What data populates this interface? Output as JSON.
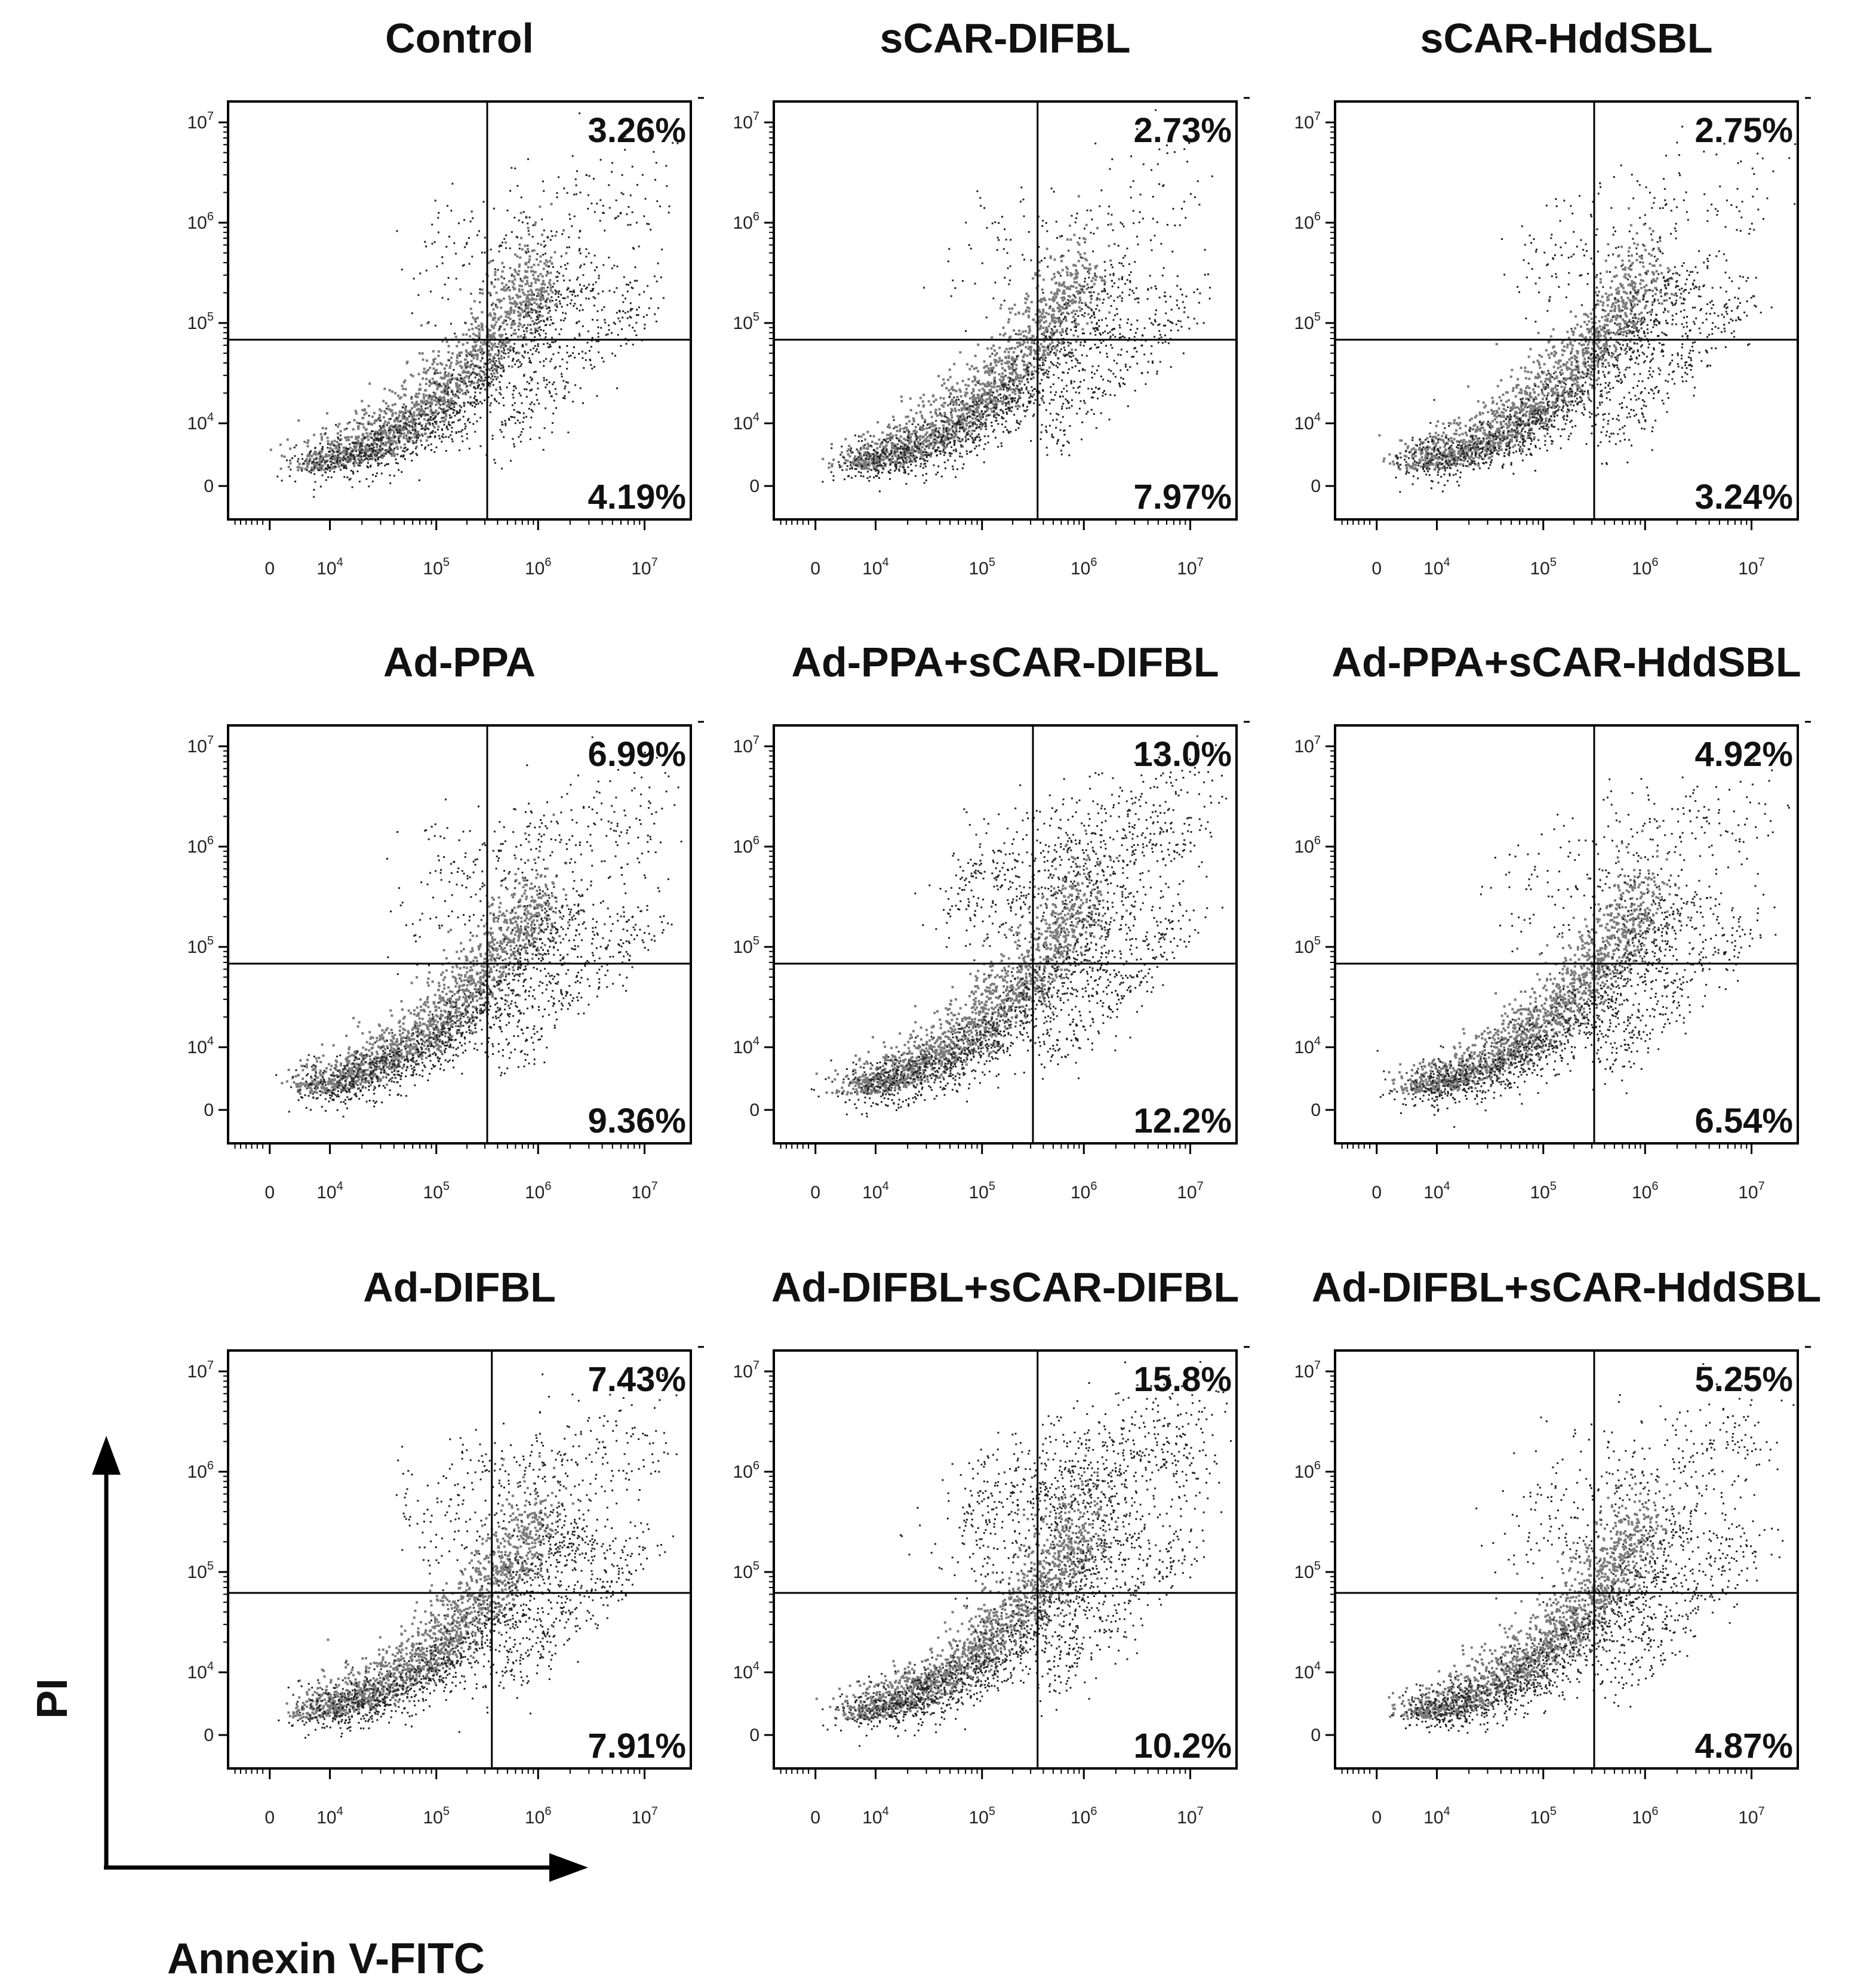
{
  "figure": {
    "colors": {
      "dots": "#222222",
      "dense": "#7a7a7a",
      "axis": "#000000",
      "text": "#111111"
    },
    "x_axis_title": "Annexin V-FITC",
    "y_axis_title": "PI"
  },
  "chart_data": [
    {
      "type": "scatter",
      "title": "Control",
      "upper_right": "3.26%",
      "lower_right": "4.19%",
      "xlabel": "Annexin V-FITC",
      "ylabel": "PI",
      "x_ticks": [
        "0",
        "10^4",
        "10^5",
        "10^6",
        "10^7"
      ],
      "y_ticks": [
        "0",
        "10^4",
        "10^5",
        "10^6",
        "10^7"
      ]
    },
    {
      "type": "scatter",
      "title": "sCAR-DIFBL",
      "upper_right": "2.73%",
      "lower_right": "7.97%",
      "xlabel": "Annexin V-FITC",
      "ylabel": "PI",
      "x_ticks": [
        "0",
        "10^4",
        "10^5",
        "10^6",
        "10^7"
      ],
      "y_ticks": [
        "0",
        "10^4",
        "10^5",
        "10^6",
        "10^7"
      ]
    },
    {
      "type": "scatter",
      "title": "sCAR-HddSBL",
      "upper_right": "2.75%",
      "lower_right": "3.24%",
      "xlabel": "Annexin V-FITC",
      "ylabel": "PI",
      "x_ticks": [
        "0",
        "10^4",
        "10^5",
        "10^6",
        "10^7"
      ],
      "y_ticks": [
        "0",
        "10^4",
        "10^5",
        "10^6",
        "10^7"
      ]
    },
    {
      "type": "scatter",
      "title": "Ad-PPA",
      "upper_right": "6.99%",
      "lower_right": "9.36%",
      "xlabel": "Annexin V-FITC",
      "ylabel": "PI",
      "x_ticks": [
        "0",
        "10^4",
        "10^5",
        "10^6",
        "10^7"
      ],
      "y_ticks": [
        "0",
        "10^4",
        "10^5",
        "10^6",
        "10^7"
      ]
    },
    {
      "type": "scatter",
      "title": "Ad-PPA+sCAR-DIFBL",
      "upper_right": "13.0%",
      "lower_right": "12.2%",
      "xlabel": "Annexin V-FITC",
      "ylabel": "PI",
      "x_ticks": [
        "0",
        "10^4",
        "10^5",
        "10^6",
        "10^7"
      ],
      "y_ticks": [
        "0",
        "10^4",
        "10^5",
        "10^6",
        "10^7"
      ]
    },
    {
      "type": "scatter",
      "title": "Ad-PPA+sCAR-HddSBL",
      "upper_right": "4.92%",
      "lower_right": "6.54%",
      "xlabel": "Annexin V-FITC",
      "ylabel": "PI",
      "x_ticks": [
        "0",
        "10^4",
        "10^5",
        "10^6",
        "10^7"
      ],
      "y_ticks": [
        "0",
        "10^4",
        "10^5",
        "10^6",
        "10^7"
      ]
    },
    {
      "type": "scatter",
      "title": "Ad-DIFBL",
      "upper_right": "7.43%",
      "lower_right": "7.91%",
      "xlabel": "Annexin V-FITC",
      "ylabel": "PI",
      "x_ticks": [
        "0",
        "10^4",
        "10^5",
        "10^6",
        "10^7"
      ],
      "y_ticks": [
        "0",
        "10^4",
        "10^5",
        "10^6",
        "10^7"
      ]
    },
    {
      "type": "scatter",
      "title": "Ad-DIFBL+sCAR-DIFBL",
      "upper_right": "15.8%",
      "lower_right": "10.2%",
      "xlabel": "Annexin V-FITC",
      "ylabel": "PI",
      "x_ticks": [
        "0",
        "10^4",
        "10^5",
        "10^6",
        "10^7"
      ],
      "y_ticks": [
        "0",
        "10^4",
        "10^5",
        "10^6",
        "10^7"
      ]
    },
    {
      "type": "scatter",
      "title": "Ad-DIFBL+sCAR-HddSBL",
      "upper_right": "5.25%",
      "lower_right": "4.87%",
      "xlabel": "Annexin V-FITC",
      "ylabel": "PI",
      "x_ticks": [
        "0",
        "10^4",
        "10^5",
        "10^6",
        "10^7"
      ],
      "y_ticks": [
        "0",
        "10^4",
        "10^5",
        "10^6",
        "10^7"
      ]
    }
  ]
}
